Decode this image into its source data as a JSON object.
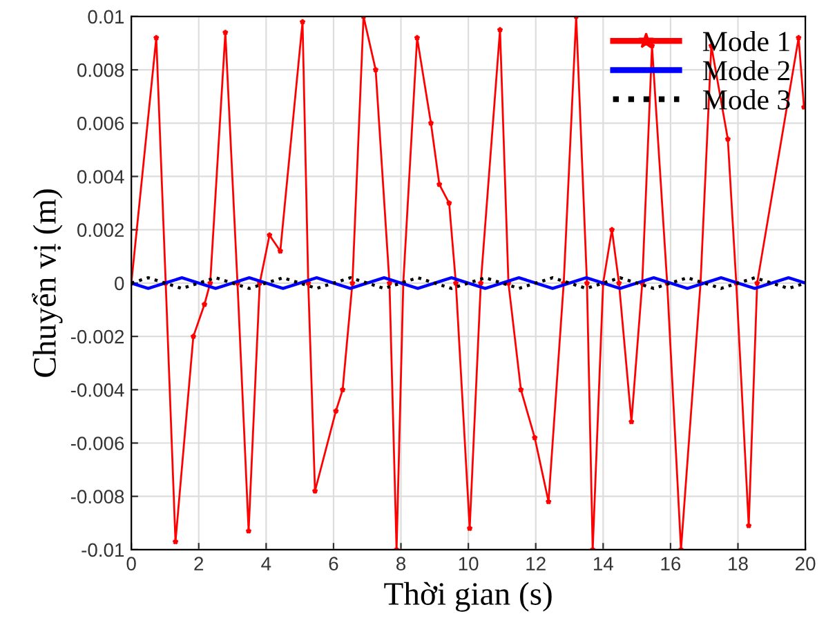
{
  "chart_data": {
    "type": "line",
    "xlabel": "Thời gian (s)",
    "ylabel": "Chuyển vị (m)",
    "xlim": [
      0,
      20
    ],
    "xticks": [
      0,
      2,
      4,
      6,
      8,
      10,
      12,
      14,
      16,
      18,
      20
    ],
    "ylim": [
      -0.01,
      0.01
    ],
    "yticks": [
      -0.01,
      -0.008,
      -0.006,
      -0.004,
      -0.002,
      0,
      0.002,
      0.004,
      0.006,
      0.008,
      0.01
    ],
    "grid": true,
    "legend": "top right",
    "series": [
      {
        "name": "Mode 1",
        "color": "#ff0000",
        "marker": "star",
        "line_style": "solid",
        "x": [
          0,
          0.74,
          1.02,
          1.31,
          1.84,
          2.17,
          2.34,
          2.79,
          3.15,
          3.48,
          3.81,
          4.1,
          4.42,
          5.08,
          5.25,
          5.45,
          6.07,
          6.27,
          6.56,
          6.89,
          7.25,
          7.66,
          7.87,
          8.07,
          8.48,
          8.89,
          9.14,
          9.43,
          9.63,
          10.04,
          10.37,
          10.94,
          11.19,
          11.56,
          11.97,
          12.38,
          12.83,
          13.2,
          13.52,
          13.69,
          14.0,
          14.26,
          14.47,
          14.84,
          15.16,
          15.45,
          15.9,
          16.31,
          16.89,
          17.21,
          17.7,
          17.95,
          18.32,
          18.57,
          19.8,
          19.96
        ],
        "values": [
          0,
          0.0092,
          0,
          -0.0097,
          -0.002,
          -0.0008,
          0,
          0.0094,
          0,
          -0.0093,
          0,
          0.0018,
          0.0012,
          0.0098,
          0,
          -0.0078,
          -0.0048,
          -0.004,
          0,
          0.01,
          0.008,
          0,
          -0.01,
          0,
          0.0092,
          0.006,
          0.0037,
          0.003,
          0,
          -0.0092,
          0,
          0.0095,
          0,
          -0.004,
          -0.0058,
          -0.0082,
          0,
          0.01,
          0,
          -0.01,
          0,
          0.002,
          0,
          -0.0052,
          0,
          0.0089,
          0,
          -0.01,
          0,
          0.0089,
          0.0054,
          0,
          -0.0091,
          0,
          0.0092,
          0.0066
        ]
      },
      {
        "name": "Mode 2",
        "color": "#0000ff",
        "line_style": "solid",
        "x": [
          0,
          0.5,
          1,
          1.5,
          2,
          2.5,
          3,
          3.5,
          4,
          4.5,
          5,
          5.5,
          6,
          6.5,
          7,
          7.5,
          8,
          8.5,
          9,
          9.5,
          10,
          10.5,
          11,
          11.5,
          12,
          12.5,
          13,
          13.5,
          14,
          14.5,
          15,
          15.5,
          16,
          16.5,
          17,
          17.5,
          18,
          18.5,
          19,
          19.5,
          20
        ],
        "values": [
          0,
          -0.0002,
          0,
          0.0002,
          0,
          -0.0002,
          0,
          0.0002,
          0,
          -0.0002,
          0,
          0.0002,
          0,
          -0.0002,
          0,
          0.0002,
          0,
          -0.0002,
          0,
          0.0002,
          0,
          -0.0002,
          0,
          0.0002,
          0,
          -0.0002,
          0,
          0.0002,
          0,
          -0.0002,
          0,
          0.0002,
          0,
          -0.0002,
          0,
          0.0002,
          0,
          -0.0002,
          0,
          0.0002,
          0
        ]
      },
      {
        "name": "Mode 3",
        "color": "#000000",
        "line_style": "dotted",
        "x": [
          0,
          0.5,
          1,
          1.5,
          2,
          2.5,
          3,
          3.5,
          4,
          4.5,
          5,
          5.5,
          6,
          6.5,
          7,
          7.5,
          8,
          8.5,
          9,
          9.5,
          10,
          10.5,
          11,
          11.5,
          12,
          12.5,
          13,
          13.5,
          14,
          14.5,
          15,
          15.5,
          16,
          16.5,
          17,
          17.5,
          18,
          18.5,
          19,
          19.5,
          20
        ],
        "values": [
          0,
          0.0002,
          0,
          -0.0002,
          0,
          0.0002,
          0,
          -0.0002,
          0,
          0.0002,
          0,
          -0.0002,
          0,
          0.0002,
          0,
          -0.0002,
          0,
          0.0002,
          0,
          -0.0002,
          0,
          0.0002,
          0,
          -0.0002,
          0,
          0.0002,
          0,
          -0.0002,
          0,
          0.0002,
          0,
          -0.0002,
          0,
          0.0002,
          0,
          -0.0002,
          0,
          0.0002,
          0,
          -0.0002,
          0
        ]
      }
    ]
  }
}
